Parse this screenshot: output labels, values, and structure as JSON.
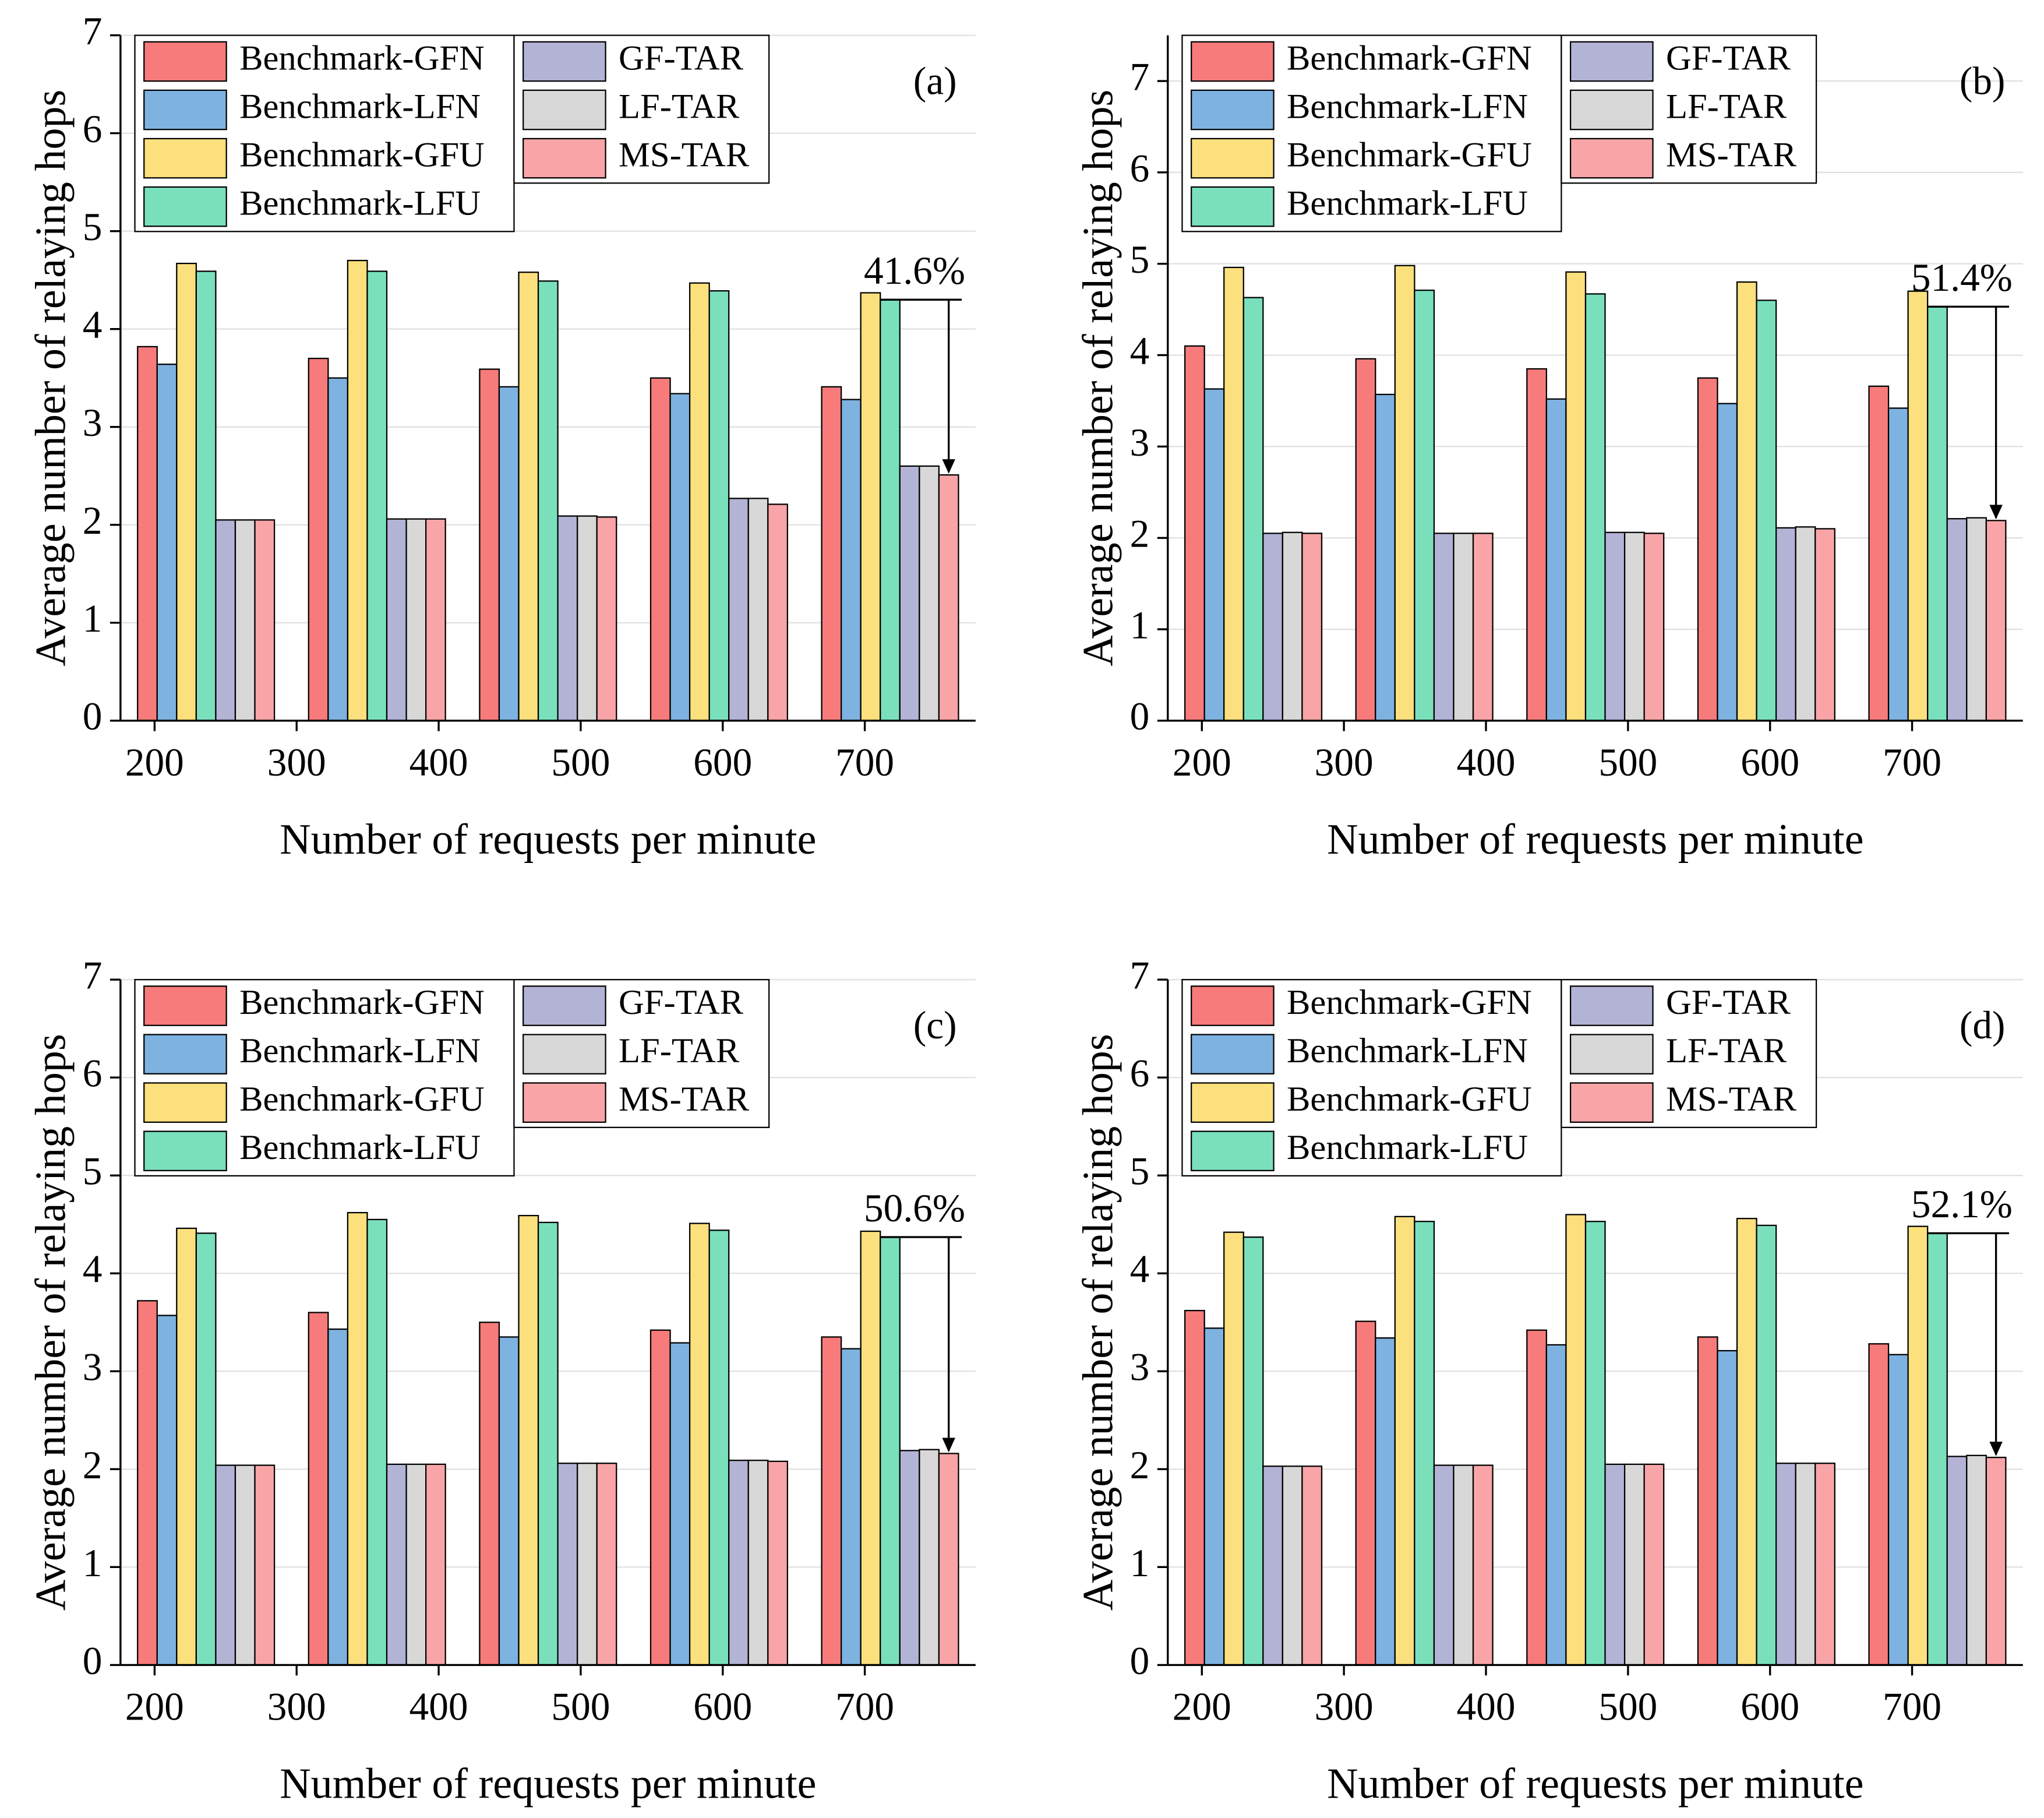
{
  "chart_data": [
    {
      "type": "bar",
      "title": "(a)",
      "xlabel": "Number of requests per minute",
      "ylabel": "Average number of relaying hops",
      "annotation": "41.6%",
      "categories": [
        null,
        null,
        null,
        null,
        null
      ],
      "xlim": [
        176,
        778
      ],
      "xticks": [
        200,
        300,
        400,
        500,
        600,
        700
      ],
      "ylim": [
        0,
        7
      ],
      "yticks": [
        0,
        1,
        2,
        3,
        4,
        5,
        6,
        7
      ],
      "grid": true,
      "legend": "upper left",
      "series": [
        {
          "name": "Benchmark-GFN",
          "color": "#f77b7b",
          "values": [
            3.82,
            3.7,
            3.59,
            3.5,
            3.41
          ]
        },
        {
          "name": "Benchmark-LFN",
          "color": "#7eb2e0",
          "values": [
            3.64,
            3.5,
            3.41,
            3.34,
            3.28
          ]
        },
        {
          "name": "Benchmark-GFU",
          "color": "#fce07e",
          "values": [
            4.67,
            4.7,
            4.58,
            4.47,
            4.37
          ]
        },
        {
          "name": "Benchmark-LFU",
          "color": "#7ae0bc",
          "values": [
            4.59,
            4.59,
            4.49,
            4.39,
            4.3
          ]
        },
        {
          "name": "GF-TAR",
          "color": "#b3b3d6",
          "values": [
            2.05,
            2.06,
            2.09,
            2.27,
            2.6
          ]
        },
        {
          "name": "LF-TAR",
          "color": "#d8d8d8",
          "values": [
            2.05,
            2.06,
            2.09,
            2.27,
            2.6
          ]
        },
        {
          "name": "MS-TAR",
          "color": "#f9a5a8",
          "values": [
            2.05,
            2.06,
            2.08,
            2.21,
            2.51
          ]
        }
      ]
    },
    {
      "type": "bar",
      "title": "(b)",
      "xlabel": "Number of requests per minute",
      "ylabel": "Average number of relaying hops",
      "annotation": "51.4%",
      "categories": [
        null,
        null,
        null,
        null,
        null
      ],
      "xlim": [
        176,
        778
      ],
      "xticks": [
        200,
        300,
        400,
        500,
        600,
        700
      ],
      "ylim": [
        0,
        7.5
      ],
      "yticks": [
        0,
        1,
        2,
        3,
        4,
        5,
        6,
        7
      ],
      "grid": true,
      "legend": "upper left",
      "series": [
        {
          "name": "Benchmark-GFN",
          "color": "#f77b7b",
          "values": [
            4.1,
            3.96,
            3.85,
            3.75,
            3.66
          ]
        },
        {
          "name": "Benchmark-LFN",
          "color": "#7eb2e0",
          "values": [
            3.63,
            3.57,
            3.52,
            3.47,
            3.42
          ]
        },
        {
          "name": "Benchmark-GFU",
          "color": "#fce07e",
          "values": [
            4.96,
            4.98,
            4.91,
            4.8,
            4.7
          ]
        },
        {
          "name": "Benchmark-LFU",
          "color": "#7ae0bc",
          "values": [
            4.63,
            4.71,
            4.67,
            4.6,
            4.53
          ]
        },
        {
          "name": "GF-TAR",
          "color": "#b3b3d6",
          "values": [
            2.05,
            2.05,
            2.06,
            2.11,
            2.21
          ]
        },
        {
          "name": "LF-TAR",
          "color": "#d8d8d8",
          "values": [
            2.06,
            2.05,
            2.06,
            2.12,
            2.22
          ]
        },
        {
          "name": "MS-TAR",
          "color": "#f9a5a8",
          "values": [
            2.05,
            2.05,
            2.05,
            2.1,
            2.19
          ]
        }
      ]
    },
    {
      "type": "bar",
      "title": "(c)",
      "xlabel": "Number of requests per minute",
      "ylabel": "Average number of relaying hops",
      "annotation": "50.6%",
      "categories": [
        null,
        null,
        null,
        null,
        null
      ],
      "xlim": [
        176,
        778
      ],
      "xticks": [
        200,
        300,
        400,
        500,
        600,
        700
      ],
      "ylim": [
        0,
        7
      ],
      "yticks": [
        0,
        1,
        2,
        3,
        4,
        5,
        6,
        7
      ],
      "grid": true,
      "legend": "upper left",
      "series": [
        {
          "name": "Benchmark-GFN",
          "color": "#f77b7b",
          "values": [
            3.72,
            3.6,
            3.5,
            3.42,
            3.35
          ]
        },
        {
          "name": "Benchmark-LFN",
          "color": "#7eb2e0",
          "values": [
            3.57,
            3.43,
            3.35,
            3.29,
            3.23
          ]
        },
        {
          "name": "Benchmark-GFU",
          "color": "#fce07e",
          "values": [
            4.46,
            4.62,
            4.59,
            4.51,
            4.43
          ]
        },
        {
          "name": "Benchmark-LFU",
          "color": "#7ae0bc",
          "values": [
            4.41,
            4.55,
            4.52,
            4.44,
            4.37
          ]
        },
        {
          "name": "GF-TAR",
          "color": "#b3b3d6",
          "values": [
            2.04,
            2.05,
            2.06,
            2.09,
            2.19
          ]
        },
        {
          "name": "LF-TAR",
          "color": "#d8d8d8",
          "values": [
            2.04,
            2.05,
            2.06,
            2.09,
            2.2
          ]
        },
        {
          "name": "MS-TAR",
          "color": "#f9a5a8",
          "values": [
            2.04,
            2.05,
            2.06,
            2.08,
            2.16
          ]
        }
      ]
    },
    {
      "type": "bar",
      "title": "(d)",
      "xlabel": "Number of requests per minute",
      "ylabel": "Average number of relaying hops",
      "annotation": "52.1%",
      "categories": [
        null,
        null,
        null,
        null,
        null
      ],
      "xlim": [
        176,
        778
      ],
      "xticks": [
        200,
        300,
        400,
        500,
        600,
        700
      ],
      "ylim": [
        0,
        7
      ],
      "yticks": [
        0,
        1,
        2,
        3,
        4,
        5,
        6,
        7
      ],
      "grid": true,
      "legend": "upper left",
      "series": [
        {
          "name": "Benchmark-GFN",
          "color": "#f77b7b",
          "values": [
            3.62,
            3.51,
            3.42,
            3.35,
            3.28
          ]
        },
        {
          "name": "Benchmark-LFN",
          "color": "#7eb2e0",
          "values": [
            3.44,
            3.34,
            3.27,
            3.21,
            3.17
          ]
        },
        {
          "name": "Benchmark-GFU",
          "color": "#fce07e",
          "values": [
            4.42,
            4.58,
            4.6,
            4.56,
            4.48
          ]
        },
        {
          "name": "Benchmark-LFU",
          "color": "#7ae0bc",
          "values": [
            4.37,
            4.53,
            4.53,
            4.49,
            4.41
          ]
        },
        {
          "name": "GF-TAR",
          "color": "#b3b3d6",
          "values": [
            2.03,
            2.04,
            2.05,
            2.06,
            2.13
          ]
        },
        {
          "name": "LF-TAR",
          "color": "#d8d8d8",
          "values": [
            2.03,
            2.04,
            2.05,
            2.06,
            2.14
          ]
        },
        {
          "name": "MS-TAR",
          "color": "#f9a5a8",
          "values": [
            2.03,
            2.04,
            2.05,
            2.06,
            2.12
          ]
        }
      ]
    }
  ]
}
